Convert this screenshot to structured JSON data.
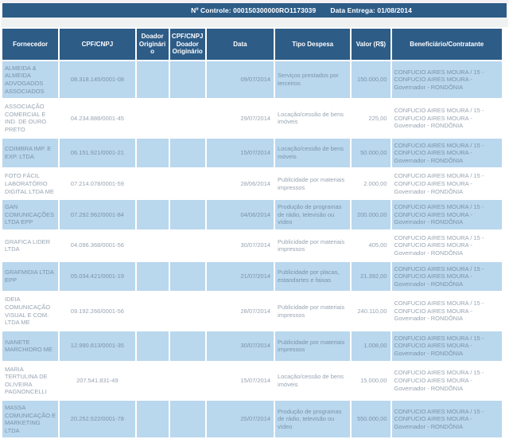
{
  "control_bar": {
    "controle_label": "Nº Controle:",
    "controle_value": "000150300000RO1173039",
    "entrega_label": "Data Entrega:",
    "entrega_value": "01/08/2014"
  },
  "colors": {
    "header_navy": "#2d5c87",
    "row_blue": "#b9d7ed",
    "row_white": "#ffffff",
    "text_on_blue": "#7a94ab",
    "text_on_white": "#98a4b2",
    "header_text": "#ffffff"
  },
  "table": {
    "columns": [
      "Fornecedor",
      "CPF/CNPJ",
      "Doador Originário",
      "CPF/CNPJ Doador Originário",
      "Data",
      "Tipo Despesa",
      "Valor (R$)",
      "Beneficiário/Contratante"
    ],
    "rows": [
      {
        "fornecedor": "ALMEIDA & ALMEIDA ADVOGADOS ASSOCIADOS",
        "cpf_cnpj": "08.318.145/0001-08",
        "doador_originario": "",
        "cpf_cnpj_doador": "",
        "data": "09/07/2014",
        "tipo_despesa": "Serviços prestados por terceiros",
        "valor": "150.000,00",
        "beneficiario": "CONFUCIO AIRES MOURA / 15 - CONFUCIO AIRES MOURA - Governador - RONDÔNIA"
      },
      {
        "fornecedor": "ASSOCIAÇÃO COMERCIAL E IND. DE OURO PRETO",
        "cpf_cnpj": "04.234.888/0001-45",
        "doador_originario": "",
        "cpf_cnpj_doador": "",
        "data": "29/07/2014",
        "tipo_despesa": "Locação/cessão de bens imóveis",
        "valor": "225,00",
        "beneficiario": "CONFUCIO AIRES MOURA / 15 - CONFUCIO AIRES MOURA - Governador - RONDÔNIA"
      },
      {
        "fornecedor": "COIMBRA IMP. E EXP. LTDA",
        "cpf_cnpj": "06.151.921/0001-21",
        "doador_originario": "",
        "cpf_cnpj_doador": "",
        "data": "15/07/2014",
        "tipo_despesa": "Locação/cessão de bens móveis",
        "valor": "50.000,00",
        "beneficiario": "CONFUCIO AIRES MOURA / 15 - CONFUCIO AIRES MOURA - Governador - RONDÔNIA"
      },
      {
        "fornecedor": "FOTO FÁCIL LABORATÓRIO DIGITAL LTDA ME",
        "cpf_cnpj": "07.214.078/0001-59",
        "doador_originario": "",
        "cpf_cnpj_doador": "",
        "data": "28/06/2014",
        "tipo_despesa": "Publicidade por materiais impressos",
        "valor": "2.000,00",
        "beneficiario": "CONFUCIO AIRES MOURA / 15 - CONFUCIO AIRES MOURA - Governador - RONDÔNIA"
      },
      {
        "fornecedor": "GAN COMUNICAÇÕES LTDA EPP",
        "cpf_cnpj": "07.292.962/0001-84",
        "doador_originario": "",
        "cpf_cnpj_doador": "",
        "data": "04/06/2014",
        "tipo_despesa": "Produção de programas de rádio, televisão ou vídeo",
        "valor": "200.000,00",
        "beneficiario": "CONFUCIO AIRES MOURA / 15 - CONFUCIO AIRES MOURA - Governador - RONDÔNIA"
      },
      {
        "fornecedor": "GRAFICA LIDER LTDA",
        "cpf_cnpj": "04.096.368/0001-56",
        "doador_originario": "",
        "cpf_cnpj_doador": "",
        "data": "30/07/2014",
        "tipo_despesa": "Publicidade por materiais impressos",
        "valor": "405,00",
        "beneficiario": "CONFUCIO AIRES MOURA / 15 - CONFUCIO AIRES MOURA - Governador - RONDÔNIA"
      },
      {
        "fornecedor": "GRAFMIDIA LTDA EPP",
        "cpf_cnpj": "05.034.421/0001-19",
        "doador_originario": "",
        "cpf_cnpj_doador": "",
        "data": "21/07/2014",
        "tipo_despesa": "Publicidade por placas, estandartes e faixas",
        "valor": "21.392,00",
        "beneficiario": "CONFUCIO AIRES MOURA / 15 - CONFUCIO AIRES MOURA - Governador - RONDÔNIA"
      },
      {
        "fornecedor": "IDEIA COMUNICAÇÃO VISUAL E COM. LTDA ME",
        "cpf_cnpj": "09.192.266/0001-56",
        "doador_originario": "",
        "cpf_cnpj_doador": "",
        "data": "28/07/2014",
        "tipo_despesa": "Publicidade por materiais impressos",
        "valor": "240.110,00",
        "beneficiario": "CONFUCIO AIRES MOURA / 15 - CONFUCIO AIRES MOURA - Governador - RONDÔNIA"
      },
      {
        "fornecedor": "IVANETE MARCHIORO ME",
        "cpf_cnpj": "12.990.813/0001-35",
        "doador_originario": "",
        "cpf_cnpj_doador": "",
        "data": "30/07/2014",
        "tipo_despesa": "Publicidade por materiais impressos",
        "valor": "1.008,00",
        "beneficiario": "CONFUCIO AIRES MOURA / 15 - CONFUCIO AIRES MOURA - Governador - RONDÔNIA"
      },
      {
        "fornecedor": "MARIA TERTULINA DE OLIVEIRA PAGNONCELLI",
        "cpf_cnpj": "207.541.831-49",
        "doador_originario": "",
        "cpf_cnpj_doador": "",
        "data": "15/07/2014",
        "tipo_despesa": "Locação/cessão de bens imóveis",
        "valor": "15.000,00",
        "beneficiario": "CONFUCIO AIRES MOURA / 15 - CONFUCIO AIRES MOURA - Governador - RONDÔNIA"
      },
      {
        "fornecedor": "MASSA COMUNICAÇÃO E MARKETING LTDA",
        "cpf_cnpj": "20.252.522/0001-78",
        "doador_originario": "",
        "cpf_cnpj_doador": "",
        "data": "25/07/2014",
        "tipo_despesa": "Produção de programas de rádio, televisão ou vídeo",
        "valor": "550.000,00",
        "beneficiario": "CONFUCIO AIRES MOURA / 15 - CONFUCIO AIRES MOURA - Governador - RONDÔNIA"
      }
    ]
  }
}
